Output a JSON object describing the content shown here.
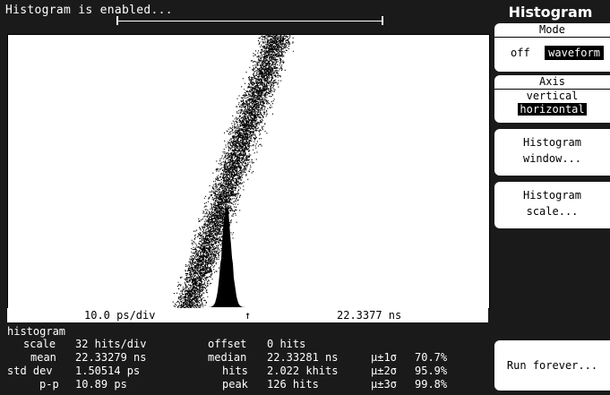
{
  "status_message": "Histogram is enabled...",
  "menu_title": "Histogram",
  "mode": {
    "header": "Mode",
    "options": [
      "off",
      "waveform"
    ],
    "selected": "waveform"
  },
  "axis": {
    "header": "Axis",
    "options": [
      "vertical",
      "horizontal"
    ],
    "selected": "horizontal"
  },
  "window_key": {
    "line1": "Histogram",
    "line2": "window..."
  },
  "scale_key": {
    "line1": "Histogram",
    "line2": "scale..."
  },
  "run_key": {
    "label": "Run forever..."
  },
  "timebase": {
    "scale": "10.0 ps/div",
    "marker": "↑",
    "position": "22.3377 ns"
  },
  "histogram": {
    "section_label": "histogram",
    "scale_label": "scale",
    "scale_value": "32 hits/div",
    "mean_label": "mean",
    "mean_value": "22.33279 ns",
    "stddev_label": "std dev",
    "stddev_value": "1.50514 ps",
    "pp_label": "p-p",
    "pp_value": "10.89 ps",
    "offset_label": "offset",
    "offset_value": "0 hits",
    "median_label": "median",
    "median_value": "22.33281 ns",
    "hits_label": "hits",
    "hits_value": "2.022 khits",
    "peak_label": "peak",
    "peak_value": "126 hits",
    "sigma1_label": "µ±1σ",
    "sigma1_value": "70.7%",
    "sigma2_label": "µ±2σ",
    "sigma2_value": "95.9%",
    "sigma3_label": "µ±3σ",
    "sigma3_value": "99.8%"
  },
  "colors": {
    "background": "#1a1a1a",
    "screen": "#ffffff",
    "trace": "#000000",
    "text": "#ffffff"
  }
}
